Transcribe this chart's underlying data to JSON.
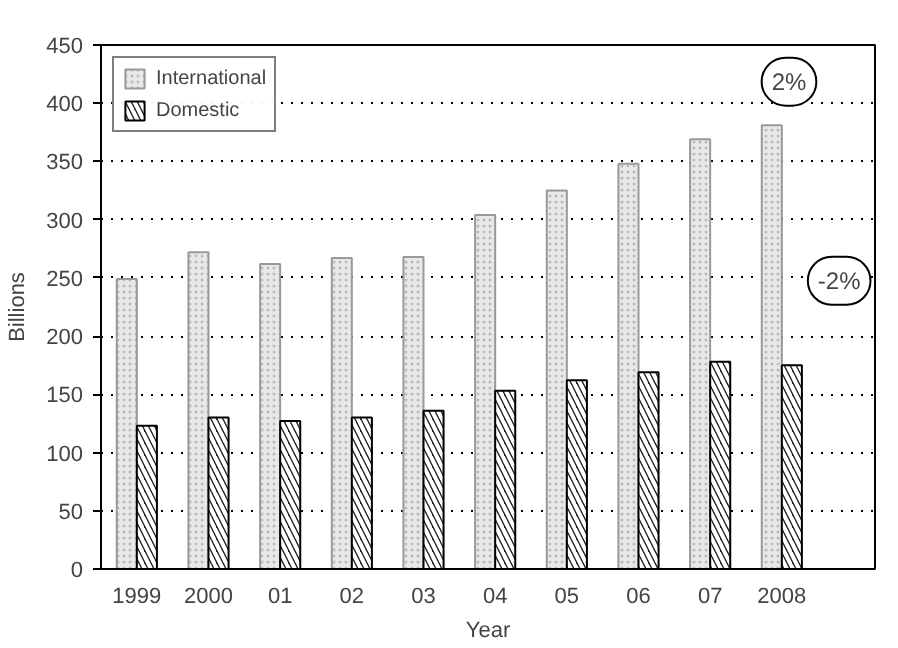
{
  "chart_data": {
    "type": "bar",
    "xlabel": "Year",
    "ylabel": "Billions",
    "categories": [
      "1999",
      "2000",
      "01",
      "02",
      "03",
      "04",
      "05",
      "06",
      "07",
      "2008"
    ],
    "series": [
      {
        "name": "International",
        "color": "#e8e8e8",
        "values": [
          249,
          272,
          262,
          267,
          268,
          304,
          325,
          348,
          369,
          381
        ]
      },
      {
        "name": "Domestic",
        "color": "#222222",
        "values": [
          123,
          130,
          127,
          130,
          136,
          153,
          162,
          169,
          178,
          175
        ]
      }
    ],
    "ylim": [
      0,
      450
    ],
    "yticks": [
      0,
      50,
      100,
      150,
      200,
      250,
      300,
      350,
      400,
      450
    ],
    "grid": "y",
    "legend": "top left",
    "annotations": [
      "2%",
      "-2%"
    ]
  }
}
